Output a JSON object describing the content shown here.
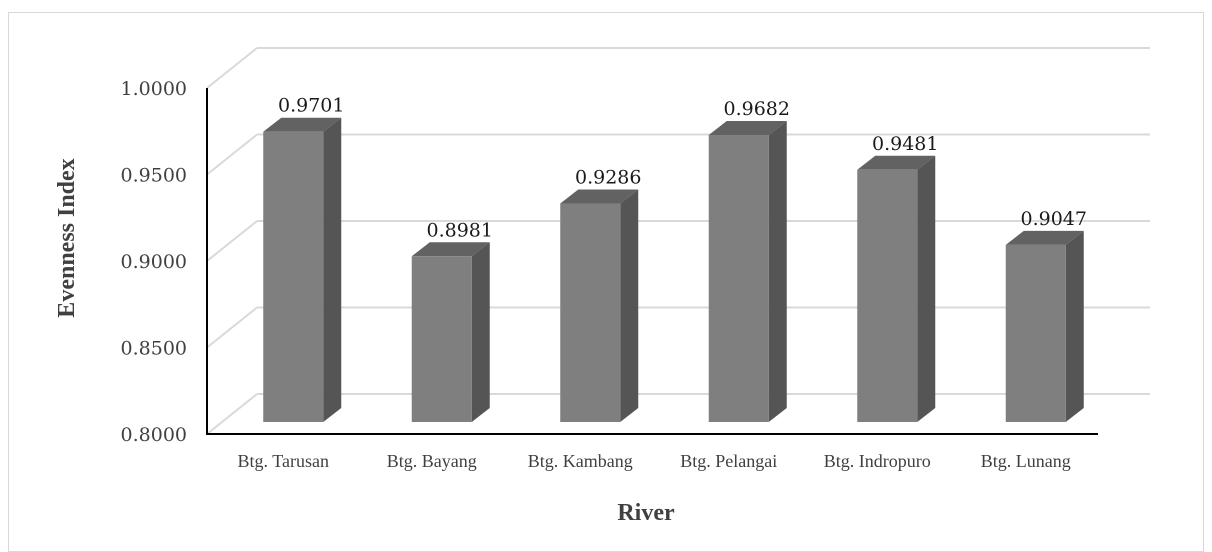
{
  "chart_data": {
    "type": "bar",
    "categories": [
      "Btg. Tarusan",
      "Btg. Bayang",
      "Btg. Kambang",
      "Btg. Pelangai",
      "Btg. Indropuro",
      "Btg. Lunang"
    ],
    "values": [
      0.9701,
      0.8981,
      0.9286,
      0.9682,
      0.9481,
      0.9047
    ],
    "value_labels": [
      "0.9701",
      "0.8981",
      "0.9286",
      "0.9682",
      "0.9481",
      "0.9047"
    ],
    "yticks": [
      "1.0000",
      "0.9500",
      "0.9000",
      "0.8500",
      "0.8000"
    ],
    "ylim": [
      0.8,
      1.0
    ],
    "xlabel": "River",
    "ylabel": "Evenness Index",
    "grid": true,
    "three_d": true,
    "colors": {
      "bar_front": "#7f7f7f",
      "bar_side": "#555555",
      "bar_top": "#626262",
      "grid": "#d9d9d9",
      "axis": "#000000"
    }
  }
}
